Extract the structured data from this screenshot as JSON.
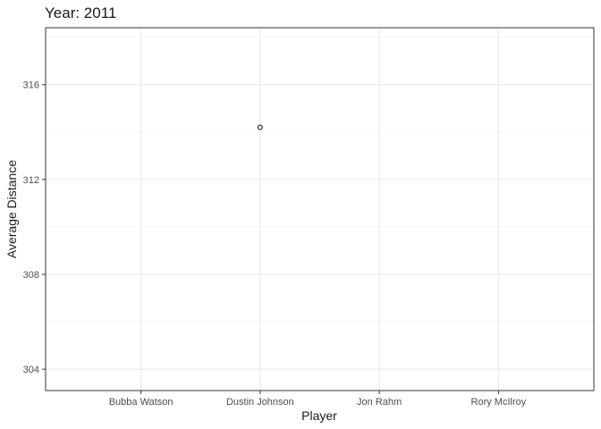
{
  "chart_data": {
    "type": "scatter",
    "title": "Year: 2011",
    "xlabel": "Player",
    "ylabel": "Average Distance",
    "categories": [
      "Bubba Watson",
      "Dustin Johnson",
      "Jon Rahm",
      "Rory McIlroy"
    ],
    "yticks": [
      304,
      308,
      312,
      316
    ],
    "ylim": [
      303.1,
      318.4
    ],
    "grid": true,
    "points": [
      {
        "x": "Dustin Johnson",
        "y": 314.2
      }
    ],
    "colors": {
      "point": "#000000",
      "grid": "#ebebeb",
      "panel_border": "#333333"
    }
  }
}
